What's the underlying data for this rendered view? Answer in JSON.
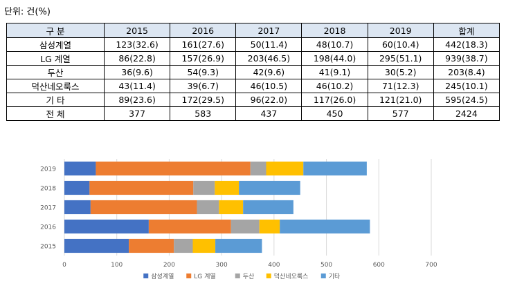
{
  "unit_label": "단위: 건(%)",
  "table": {
    "header": [
      "구  분",
      "2015",
      "2016",
      "2017",
      "2018",
      "2019",
      "합계"
    ],
    "rows": [
      {
        "label": "삼성계열",
        "cells": [
          "123(32.6)",
          "161(27.6)",
          "50(11.4)",
          "48(10.7)",
          "60(10.4)",
          "442(18.3)"
        ]
      },
      {
        "label": "LG 계열",
        "cells": [
          "86(22.8)",
          "157(26.9)",
          "203(46.5)",
          "198(44.0)",
          "295(51.1)",
          "939(38.7)"
        ]
      },
      {
        "label": "두산",
        "cells": [
          "36(9.6)",
          "54(9.3)",
          "42(9.6)",
          "41(9.1)",
          "30(5.2)",
          "203(8.4)"
        ]
      },
      {
        "label": "덕산네오룩스",
        "cells": [
          "43(11.4)",
          "39(6.7)",
          "46(10.5)",
          "46(10.2)",
          "71(12.3)",
          "245(10.1)"
        ]
      },
      {
        "label": "기  타",
        "cells": [
          "89(23.6)",
          "172(29.5)",
          "96(22.0)",
          "117(26.0)",
          "121(21.0)",
          "595(24.5)"
        ]
      },
      {
        "label": "전  체",
        "cells": [
          "377",
          "583",
          "437",
          "450",
          "577",
          "2424"
        ]
      }
    ]
  },
  "chart_data": {
    "type": "bar",
    "orientation": "horizontal",
    "stacked": true,
    "categories": [
      "2019",
      "2018",
      "2017",
      "2016",
      "2015"
    ],
    "series": [
      {
        "name": "삼성계열",
        "color": "#4472c4",
        "values": [
          60,
          48,
          50,
          161,
          123
        ]
      },
      {
        "name": "LG 계열",
        "color": "#ed7d31",
        "values": [
          295,
          198,
          203,
          157,
          86
        ]
      },
      {
        "name": "두산",
        "color": "#a5a5a5",
        "values": [
          30,
          41,
          42,
          54,
          36
        ]
      },
      {
        "name": "덕산네오룩스",
        "color": "#ffc000",
        "values": [
          71,
          46,
          46,
          39,
          43
        ]
      },
      {
        "name": "기타",
        "color": "#5b9bd5",
        "values": [
          121,
          117,
          96,
          172,
          89
        ]
      }
    ],
    "xlim": [
      0,
      700
    ],
    "xticks": [
      0,
      100,
      200,
      300,
      400,
      500,
      600,
      700
    ],
    "grid": true,
    "legend_position": "bottom"
  }
}
